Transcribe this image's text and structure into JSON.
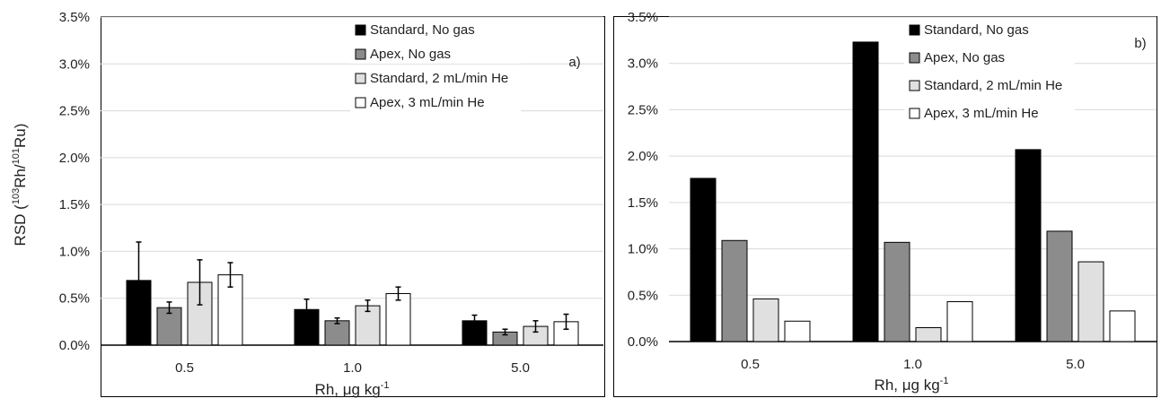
{
  "chart_data": [
    {
      "type": "bar",
      "panel_label": "a)",
      "categories": [
        "0.5",
        "1.0",
        "5.0"
      ],
      "series": [
        {
          "name": "Standard, No gas",
          "values": [
            0.0069,
            0.0038,
            0.0026
          ],
          "errors": [
            0.0041,
            0.0011,
            0.0006
          ]
        },
        {
          "name": "Apex, No gas",
          "values": [
            0.004,
            0.0026,
            0.0014
          ],
          "errors": [
            0.0006,
            0.0003,
            0.0003
          ]
        },
        {
          "name": "Standard, 2 mL/min He",
          "values": [
            0.0067,
            0.0042,
            0.002
          ],
          "errors": [
            0.0024,
            0.0006,
            0.0006
          ]
        },
        {
          "name": "Apex, 3 mL/min He",
          "values": [
            0.0075,
            0.0055,
            0.0025
          ],
          "errors": [
            0.0013,
            0.0007,
            0.0008
          ]
        }
      ],
      "colors": [
        "#000000",
        "#8c8c8c",
        "#e0e0e0",
        "#ffffff"
      ],
      "ylim": [
        0,
        0.035
      ],
      "yticks": [
        "0.0%",
        "0.5%",
        "1.0%",
        "1.5%",
        "2.0%",
        "2.5%",
        "3.0%",
        "3.5%"
      ],
      "ylabel": {
        "pre": "RSD (",
        "sup1": "103",
        "mid": "Rh/",
        "sup2": "101",
        "post": "Ru)"
      },
      "xlabel": {
        "base": "Rh, μg kg",
        "sup": "-1"
      },
      "grid": true,
      "legend": "top-right"
    },
    {
      "type": "bar",
      "panel_label": "b)",
      "categories": [
        "0.5",
        "1.0",
        "5.0"
      ],
      "series": [
        {
          "name": "Standard, No gas",
          "values": [
            0.0176,
            0.0323,
            0.0207
          ]
        },
        {
          "name": "Apex, No gas",
          "values": [
            0.0109,
            0.0107,
            0.0119
          ]
        },
        {
          "name": "Standard, 2 mL/min He",
          "values": [
            0.0046,
            0.0015,
            0.0086
          ]
        },
        {
          "name": "Apex, 3 mL/min He",
          "values": [
            0.0022,
            0.0043,
            0.0033
          ]
        }
      ],
      "colors": [
        "#000000",
        "#8c8c8c",
        "#e0e0e0",
        "#ffffff"
      ],
      "ylim": [
        0,
        0.035
      ],
      "yticks": [
        "0.0%",
        "0.5%",
        "1.0%",
        "1.5%",
        "2.0%",
        "2.5%",
        "3.0%",
        "3.5%"
      ],
      "xlabel": {
        "base": "Rh, μg kg",
        "sup": "-1"
      },
      "grid": true,
      "legend": "top-right"
    }
  ]
}
